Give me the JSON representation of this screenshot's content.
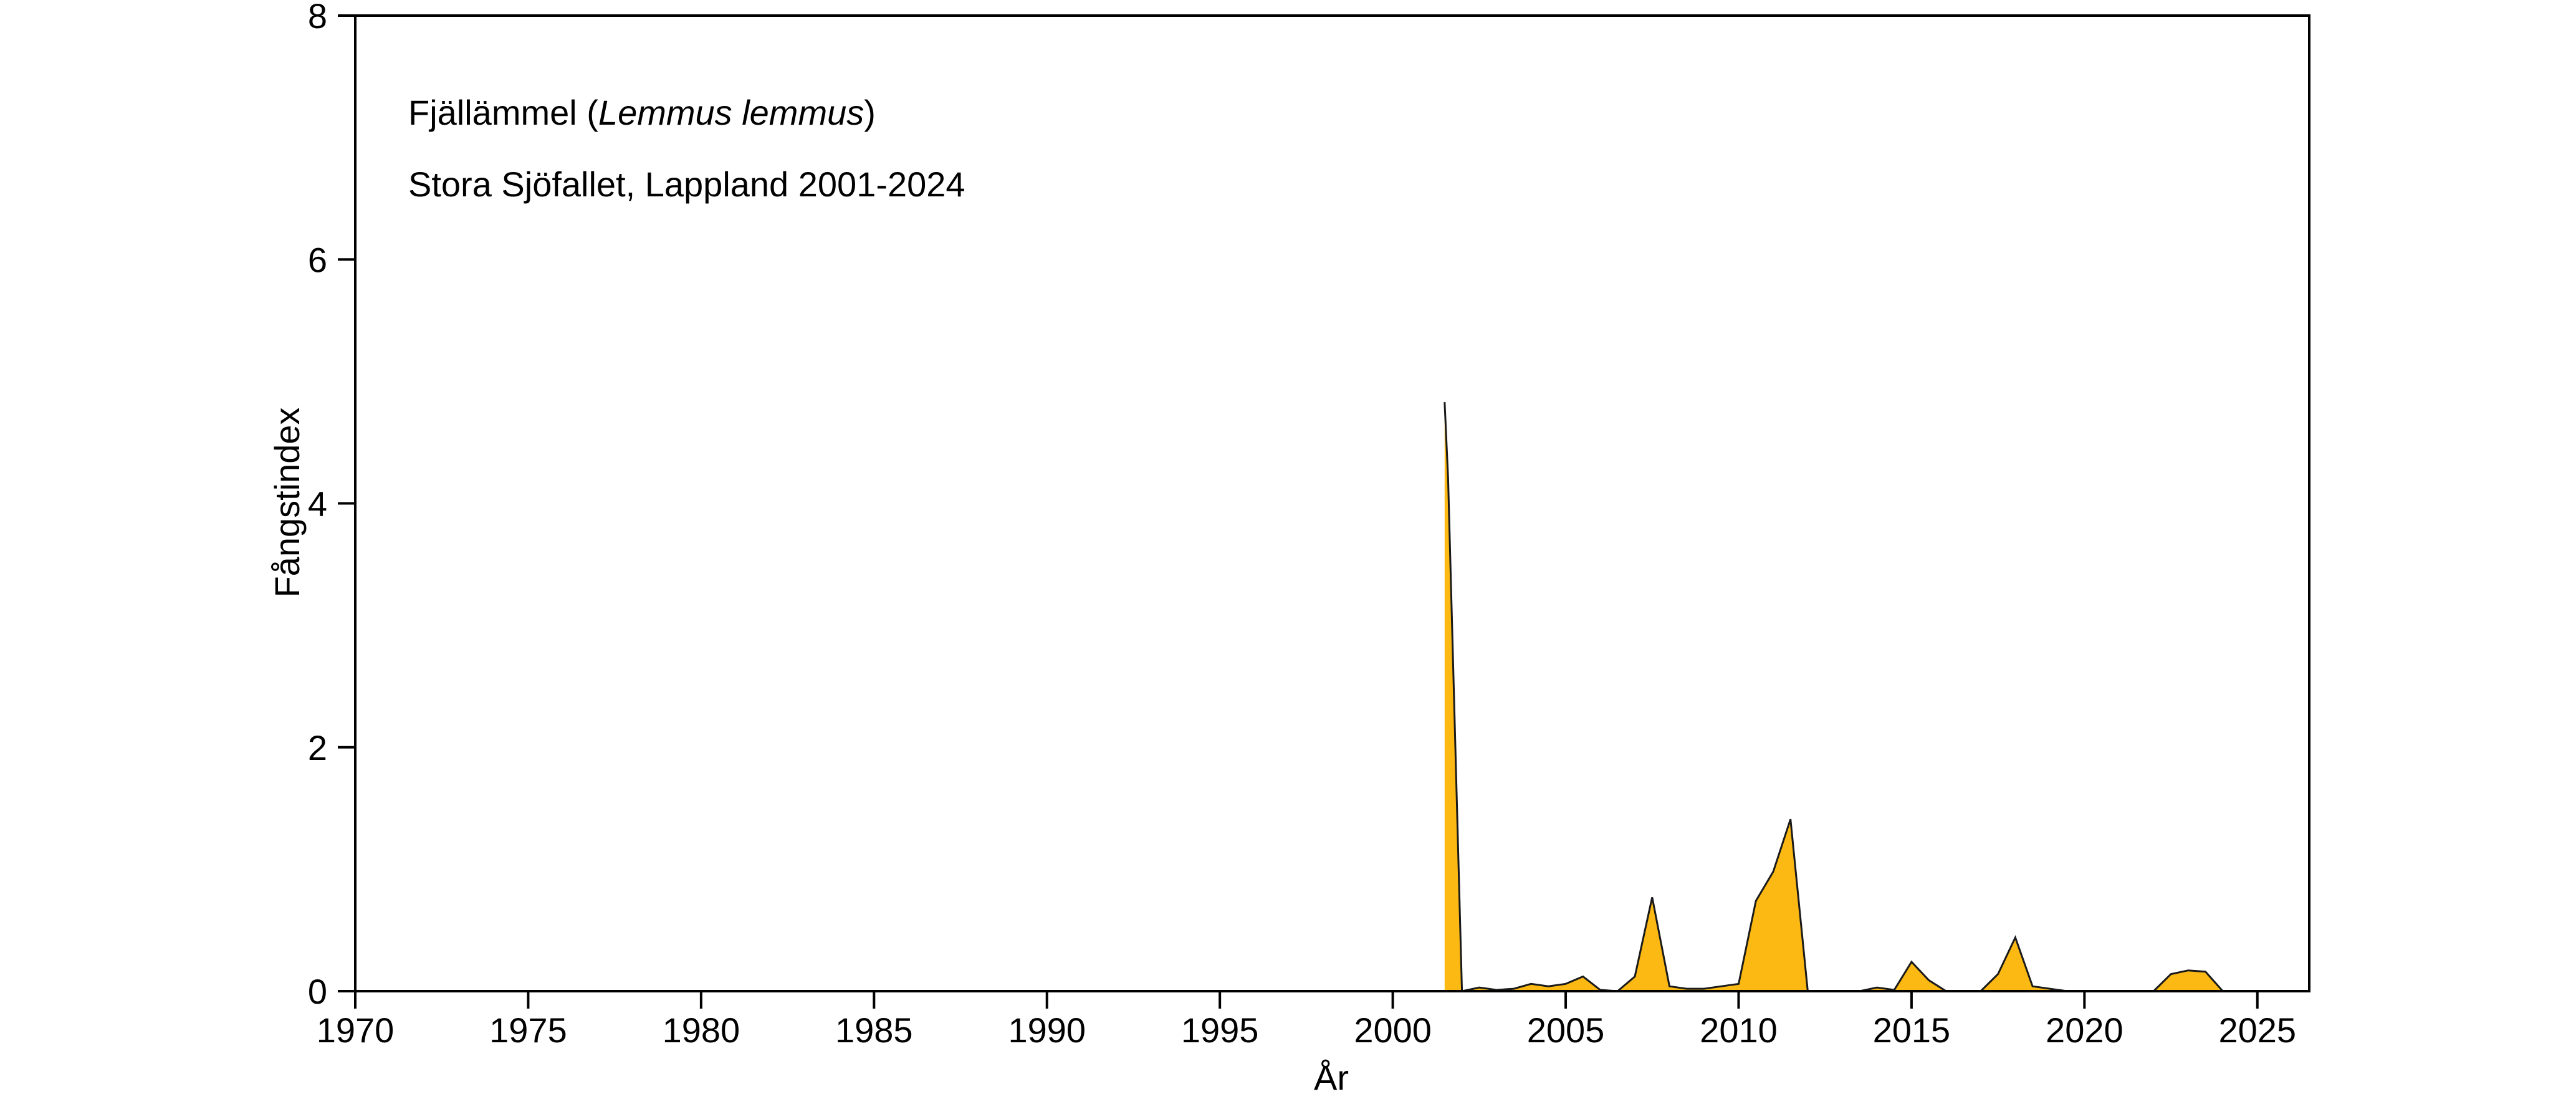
{
  "chart_data": {
    "type": "area",
    "title_parts": {
      "prefix": "Fjällämmel (",
      "species": "Lemmus lemmus",
      "suffix": ")"
    },
    "subtitle": "Stora Sjöfallet, Lappland 2001-2024",
    "xlabel": "År",
    "ylabel": "Fångstindex",
    "xlim": [
      1970,
      2026.5
    ],
    "ylim": [
      0,
      8
    ],
    "x_ticks": [
      1970,
      1975,
      1980,
      1985,
      1990,
      1995,
      2000,
      2005,
      2010,
      2015,
      2020,
      2025
    ],
    "y_ticks": [
      0,
      2,
      4,
      6,
      8
    ],
    "grid": false,
    "fill_color": "#FDB913",
    "line_color": "#1a1a1a",
    "series": [
      {
        "x": [
          2001.5,
          2001.6,
          2002.0,
          2002.5,
          2003.0,
          2003.5,
          2004.0,
          2004.5,
          2005.0,
          2005.5,
          2006.0,
          2006.5,
          2007.0,
          2007.5,
          2008.0,
          2008.5,
          2009.0,
          2009.5,
          2010.0,
          2010.5,
          2011.0,
          2011.5,
          2012.0,
          2012.5,
          2013.0,
          2013.5,
          2014.0,
          2014.5,
          2015.0,
          2015.5,
          2016.0,
          2016.5,
          2017.0,
          2017.5,
          2018.0,
          2018.5,
          2019.0,
          2019.5,
          2020.0,
          2020.5,
          2021.0,
          2021.5,
          2022.0,
          2022.5,
          2023.0,
          2023.5,
          2024.0,
          2026.5
        ],
        "y": [
          4.83,
          4.2,
          0.0,
          0.03,
          0.01,
          0.02,
          0.06,
          0.04,
          0.06,
          0.12,
          0.01,
          0.0,
          0.12,
          0.77,
          0.04,
          0.02,
          0.02,
          0.04,
          0.06,
          0.74,
          0.98,
          1.41,
          0.0,
          0.0,
          0.0,
          0.0,
          0.03,
          0.01,
          0.24,
          0.09,
          0.0,
          0.0,
          0.0,
          0.14,
          0.44,
          0.04,
          0.02,
          0.0,
          0.0,
          0.0,
          0.0,
          0.0,
          0.0,
          0.14,
          0.17,
          0.16,
          0.0,
          0.0
        ]
      }
    ]
  }
}
